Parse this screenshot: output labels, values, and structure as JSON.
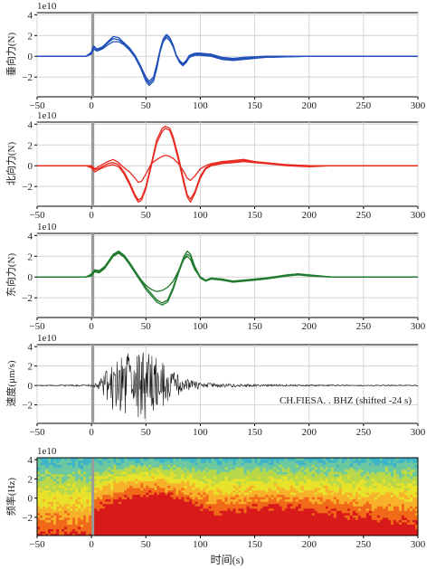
{
  "chart_data": [
    {
      "type": "line",
      "ylabel": "垂向力(N)",
      "exponent_label": "1e10",
      "xlim": [
        -50,
        300
      ],
      "ylim": [
        -3.9,
        4.2
      ],
      "xticks": [
        -50,
        0,
        50,
        100,
        150,
        200,
        250,
        300
      ],
      "yticks": [
        -2,
        0,
        2,
        4
      ],
      "xtick_labels": [
        "−50",
        "0",
        "50",
        "100",
        "150",
        "200",
        "250",
        "300"
      ],
      "ytick_labels": [
        "−2",
        "0",
        "2",
        "4"
      ],
      "grid": true,
      "colors": [
        "#1f4fb8"
      ],
      "marker_band": [
        0,
        2
      ],
      "x": [
        -50,
        -20,
        -5,
        0,
        2,
        5,
        10,
        15,
        20,
        25,
        30,
        35,
        40,
        45,
        50,
        53,
        57,
        60,
        63,
        66,
        69,
        72,
        75,
        78,
        81,
        84,
        87,
        90,
        95,
        100,
        110,
        120,
        130,
        140,
        160,
        200,
        250,
        300
      ],
      "series": [
        {
          "values": [
            0,
            0,
            0,
            0.3,
            0.9,
            0.6,
            0.8,
            1.3,
            1.7,
            1.6,
            1.2,
            0.7,
            0.0,
            -1.0,
            -2.2,
            -2.6,
            -2.2,
            -1.0,
            0.5,
            1.6,
            2.0,
            1.7,
            1.0,
            0.0,
            -0.5,
            -0.8,
            -0.5,
            0.0,
            0.2,
            0.2,
            0.1,
            -0.2,
            -0.3,
            -0.2,
            -0.1,
            0,
            0,
            0
          ]
        },
        {
          "values": [
            0,
            0,
            0,
            0.2,
            0.7,
            0.5,
            0.7,
            1.1,
            1.4,
            1.4,
            1.1,
            0.6,
            -0.1,
            -1.1,
            -2.4,
            -2.8,
            -2.4,
            -1.2,
            0.4,
            1.4,
            1.8,
            1.5,
            0.9,
            0.0,
            -0.6,
            -0.9,
            -0.6,
            -0.1,
            0.1,
            0.1,
            0.0,
            -0.3,
            -0.4,
            -0.3,
            -0.1,
            0,
            0,
            0
          ]
        },
        {
          "values": [
            0,
            0,
            0,
            0.4,
            1.0,
            0.7,
            0.9,
            1.4,
            1.9,
            1.8,
            1.3,
            0.8,
            0.1,
            -0.9,
            -2.0,
            -2.4,
            -2.0,
            -0.8,
            0.6,
            1.7,
            2.1,
            1.8,
            1.1,
            0.1,
            -0.4,
            -0.7,
            -0.4,
            0.1,
            0.3,
            0.3,
            0.2,
            -0.1,
            -0.2,
            -0.1,
            0.0,
            0,
            0,
            0
          ]
        }
      ]
    },
    {
      "type": "line",
      "ylabel": "北向力(N)",
      "exponent_label": "1e10",
      "xlim": [
        -50,
        300
      ],
      "ylim": [
        -3.9,
        4.2
      ],
      "xticks": [
        -50,
        0,
        50,
        100,
        150,
        200,
        250,
        300
      ],
      "yticks": [
        -2,
        0,
        2,
        4
      ],
      "xtick_labels": [
        "−50",
        "0",
        "50",
        "100",
        "150",
        "200",
        "250",
        "300"
      ],
      "ytick_labels": [
        "−2",
        "0",
        "2",
        "4"
      ],
      "grid": true,
      "colors": [
        "#e8281e"
      ],
      "marker_band": [
        0,
        2
      ],
      "x": [
        -50,
        -20,
        -5,
        0,
        3,
        8,
        15,
        20,
        25,
        30,
        35,
        40,
        43,
        46,
        50,
        55,
        60,
        65,
        68,
        72,
        75,
        80,
        85,
        88,
        91,
        95,
        100,
        105,
        110,
        120,
        130,
        140,
        150,
        160,
        180,
        200,
        220,
        250,
        300
      ],
      "series": [
        {
          "values": [
            0,
            0,
            0,
            -0.1,
            -0.4,
            -0.2,
            0.2,
            0.3,
            0.1,
            -0.6,
            -1.6,
            -2.8,
            -3.3,
            -3.1,
            -2.0,
            0.2,
            2.5,
            3.6,
            3.8,
            3.6,
            2.8,
            0.8,
            -1.5,
            -2.8,
            -3.2,
            -2.5,
            -1.0,
            -0.2,
            0.1,
            0.3,
            0.4,
            0.5,
            0.4,
            0.3,
            0.1,
            0,
            0,
            0,
            0
          ]
        },
        {
          "values": [
            0,
            0,
            0,
            -0.2,
            -0.6,
            -0.3,
            0.0,
            0.1,
            -0.1,
            -0.8,
            -1.8,
            -3.0,
            -3.5,
            -3.3,
            -2.2,
            0.0,
            2.2,
            3.3,
            3.6,
            3.4,
            2.5,
            0.5,
            -1.8,
            -3.0,
            -3.5,
            -2.7,
            -1.2,
            -0.3,
            0.0,
            0.2,
            0.3,
            0.4,
            0.3,
            0.2,
            0.1,
            0,
            0,
            0,
            0
          ]
        },
        {
          "values": [
            0,
            0,
            0,
            0.0,
            -0.3,
            0.0,
            0.4,
            0.6,
            0.3,
            -0.2,
            -0.6,
            -1.2,
            -1.6,
            -1.5,
            -0.8,
            0.2,
            0.6,
            0.9,
            1.0,
            0.9,
            0.7,
            0.2,
            -0.6,
            -1.2,
            -1.4,
            -1.0,
            -0.3,
            0.0,
            0.2,
            0.4,
            0.5,
            0.6,
            0.4,
            0.2,
            0.0,
            -0.1,
            0,
            0,
            0
          ]
        }
      ]
    },
    {
      "type": "line",
      "ylabel": "东向力(N)",
      "exponent_label": "1e10",
      "xlim": [
        -50,
        300
      ],
      "ylim": [
        -3.9,
        4.2
      ],
      "xticks": [
        -50,
        0,
        50,
        100,
        150,
        200,
        250,
        300
      ],
      "yticks": [
        -2,
        0,
        2,
        4
      ],
      "xtick_labels": [
        "−50",
        "0",
        "50",
        "100",
        "150",
        "200",
        "250",
        "300"
      ],
      "ytick_labels": [
        "−2",
        "0",
        "2",
        "4"
      ],
      "grid": true,
      "colors": [
        "#1f7a2e"
      ],
      "marker_band": [
        0,
        2
      ],
      "x": [
        -50,
        -20,
        -5,
        0,
        3,
        7,
        12,
        16,
        20,
        25,
        30,
        35,
        40,
        45,
        50,
        55,
        60,
        65,
        70,
        75,
        80,
        85,
        88,
        91,
        95,
        100,
        105,
        110,
        120,
        130,
        140,
        150,
        160,
        180,
        190,
        200,
        220,
        250,
        300
      ],
      "series": [
        {
          "values": [
            0,
            0,
            0,
            0.3,
            0.7,
            0.6,
            1.0,
            1.6,
            2.2,
            2.5,
            2.1,
            1.4,
            0.6,
            -0.2,
            -1.0,
            -1.6,
            -2.2,
            -2.5,
            -2.2,
            -1.0,
            0.6,
            2.0,
            2.5,
            2.2,
            1.0,
            0.0,
            -0.3,
            -0.1,
            -0.2,
            -0.4,
            -0.3,
            -0.2,
            -0.1,
            0.2,
            0.3,
            0.2,
            0,
            0,
            0
          ]
        },
        {
          "values": [
            0,
            0,
            0,
            0.2,
            0.5,
            0.4,
            0.8,
            1.4,
            2.0,
            2.3,
            1.9,
            1.2,
            0.4,
            -0.4,
            -1.2,
            -1.8,
            -2.4,
            -2.7,
            -2.4,
            -1.2,
            0.4,
            1.8,
            2.2,
            2.0,
            0.8,
            -0.1,
            -0.4,
            -0.2,
            -0.3,
            -0.5,
            -0.4,
            -0.3,
            -0.2,
            0.1,
            0.2,
            0.1,
            0,
            0,
            0
          ]
        },
        {
          "values": [
            0,
            0,
            0,
            0.1,
            0.6,
            0.5,
            0.9,
            1.5,
            2.1,
            2.4,
            2.0,
            1.3,
            0.5,
            -0.2,
            -0.8,
            -1.2,
            -1.4,
            -1.3,
            -1.0,
            -0.4,
            0.6,
            1.7,
            2.0,
            1.7,
            0.7,
            0.0,
            -0.3,
            -0.1,
            -0.2,
            -0.4,
            -0.3,
            -0.2,
            -0.1,
            0.2,
            0.3,
            0.2,
            0,
            0,
            0
          ]
        }
      ]
    },
    {
      "type": "line",
      "ylabel": "速度(μm/s)",
      "exponent_label": "1e10",
      "xlim": [
        -50,
        300
      ],
      "ylim": [
        -3.9,
        4.2
      ],
      "xticks": [
        -50,
        0,
        50,
        100,
        150,
        200,
        250,
        300
      ],
      "yticks": [
        -2,
        0,
        2,
        4
      ],
      "xtick_labels": [
        "−50",
        "0",
        "50",
        "100",
        "150",
        "200",
        "250",
        "300"
      ],
      "ytick_labels": [
        "−2",
        "0",
        "2",
        "4"
      ],
      "grid": true,
      "colors": [
        "#111111"
      ],
      "marker_band": [
        0,
        2
      ],
      "annotation": "CH.FIESA. . BHZ (shifted -24 s)",
      "envelope": {
        "x": [
          -50,
          0,
          5,
          10,
          15,
          20,
          30,
          40,
          48,
          55,
          65,
          75,
          85,
          100,
          120,
          150,
          200,
          300
        ],
        "amplitude": [
          0.05,
          0.1,
          0.3,
          1.0,
          1.8,
          2.6,
          3.2,
          3.6,
          3.8,
          3.2,
          2.4,
          1.5,
          0.8,
          0.3,
          0.2,
          0.12,
          0.08,
          0.05
        ]
      }
    },
    {
      "type": "heatmap",
      "ylabel": "频率(Hz)",
      "exponent_label": "1e10",
      "xlabel": "时间(s)",
      "xlim": [
        -50,
        300
      ],
      "ylim": [
        -3.9,
        4.2
      ],
      "xticks": [
        -50,
        0,
        50,
        100,
        150,
        200,
        250,
        300
      ],
      "yticks": [
        -2,
        0,
        2,
        4
      ],
      "xtick_labels": [
        "−50",
        "0",
        "50",
        "100",
        "150",
        "200",
        "250",
        "300"
      ],
      "ytick_labels": [
        "−2",
        "0",
        "2",
        "4"
      ],
      "grid": false,
      "colors": [
        "#d81a1a",
        "#f06a1a",
        "#f7b12a",
        "#e8e22a",
        "#b8d84a",
        "#6cc8a0",
        "#3fb4c8"
      ],
      "marker_band": [
        0,
        2
      ]
    }
  ]
}
